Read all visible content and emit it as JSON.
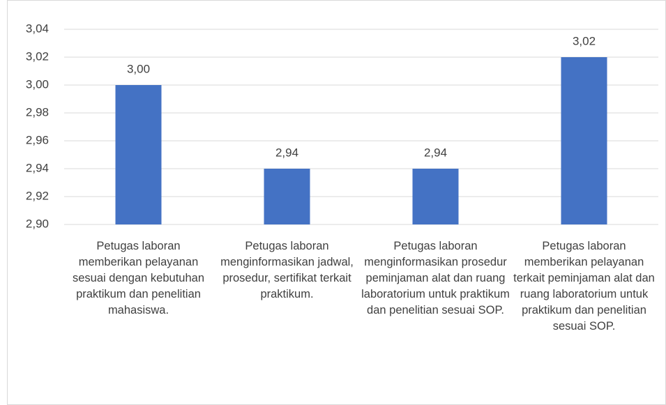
{
  "chart_data": {
    "type": "bar",
    "categories": [
      "Petugas laboran memberikan pelayanan sesuai dengan kebutuhan praktikum dan penelitian mahasiswa.",
      "Petugas laboran menginformasikan jadwal, prosedur, sertifikat terkait praktikum.",
      "Petugas laboran menginformasikan prosedur peminjaman alat dan ruang laboratorium untuk praktikum dan penelitian sesuai SOP.",
      "Petugas laboran memberikan pelayanan terkait peminjaman alat dan ruang laboratorium untuk praktikum dan penelitian sesuai SOP."
    ],
    "values": [
      3.0,
      2.94,
      2.94,
      3.02
    ],
    "value_labels": [
      "3,00",
      "2,94",
      "2,94",
      "3,02"
    ],
    "color": "#4472c4",
    "ylim": [
      2.9,
      3.04
    ],
    "yticks": [
      {
        "value": 2.9,
        "label": "2,90"
      },
      {
        "value": 2.92,
        "label": "2,92"
      },
      {
        "value": 2.94,
        "label": "2,94"
      },
      {
        "value": 2.96,
        "label": "2,96"
      },
      {
        "value": 2.98,
        "label": "2,98"
      },
      {
        "value": 3.0,
        "label": "3,00"
      },
      {
        "value": 3.02,
        "label": "3,02"
      },
      {
        "value": 3.04,
        "label": "3,04"
      }
    ],
    "grid": true
  }
}
